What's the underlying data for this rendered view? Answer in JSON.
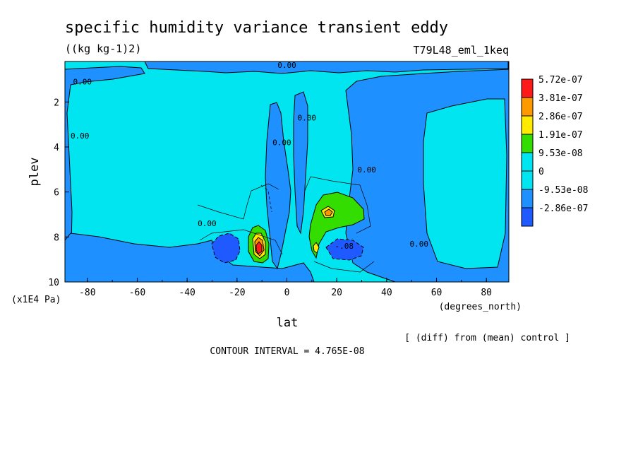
{
  "chart_data": {
    "type": "heatmap",
    "title": "specific humidity variance transient eddy",
    "units": "((kg kg-1)2)",
    "run_label": "T79L48_eml_1keq",
    "xlabel": "lat",
    "xunits": "(degrees_north)",
    "ylabel": "plev",
    "yunits": "(x1E4 Pa)",
    "x_ticks": [
      "-80",
      "-60",
      "-40",
      "-20",
      "0",
      "20",
      "40",
      "60",
      "80"
    ],
    "x_tick_values": [
      -80,
      -60,
      -40,
      -20,
      0,
      20,
      40,
      60,
      80
    ],
    "y_ticks": [
      "2",
      "4",
      "6",
      "8",
      "10"
    ],
    "y_tick_values": [
      2,
      4,
      6,
      8,
      10
    ],
    "xlim": [
      -89,
      89
    ],
    "ylim": [
      0.2,
      10
    ],
    "y_inverted": true,
    "grid": false,
    "legend_placement": "right",
    "colorbar": [
      {
        "label": "5.72e-07",
        "color": "#ff1a1a"
      },
      {
        "label": "3.81e-07",
        "color": "#ff9900"
      },
      {
        "label": "2.86e-07",
        "color": "#ffea00"
      },
      {
        "label": "1.91e-07",
        "color": "#33dd00"
      },
      {
        "label": "9.53e-08",
        "color": "#00e5f0"
      },
      {
        "label": "0",
        "color": "#00e5f0"
      },
      {
        "label": "-9.53e-08",
        "color": "#1e90ff"
      },
      {
        "label": "-2.86e-07",
        "color": "#1e5aff"
      }
    ],
    "contour_labels": [
      {
        "text": "0.00",
        "lat": -82,
        "plev": 1.1
      },
      {
        "text": "0.00",
        "lat": 0,
        "plev": 0.35
      },
      {
        "text": "0.00",
        "lat": -83,
        "plev": 3.5
      },
      {
        "text": "0.00",
        "lat": -2,
        "plev": 3.8
      },
      {
        "text": "0.00",
        "lat": 8,
        "plev": 2.7
      },
      {
        "text": "0.00",
        "lat": 32,
        "plev": 5.0
      },
      {
        "text": "0.00",
        "lat": -32,
        "plev": 7.4
      },
      {
        "text": "0.00",
        "lat": 53,
        "plev": 8.3
      },
      {
        "text": "-.08",
        "lat": 23,
        "plev": 8.4
      }
    ],
    "regions": [
      {
        "name": "negative-band-west",
        "lat_range": [
          -89,
          -62
        ],
        "plev_range": [
          0.4,
          10
        ],
        "level": "-9.53e-08"
      },
      {
        "name": "negative-column-equator",
        "lat_range": [
          -7,
          4
        ],
        "plev_range": [
          1.5,
          9.5
        ],
        "level": "-9.53e-08"
      },
      {
        "name": "negative-column-north",
        "lat_range": [
          27,
          89
        ],
        "plev_range": [
          0.4,
          10
        ],
        "level": "-9.53e-08"
      },
      {
        "name": "positive-max-south",
        "lat_range": [
          -17,
          -8
        ],
        "plev_range": [
          7.5,
          9.2
        ],
        "level": "5.72e-07"
      },
      {
        "name": "positive-max-north",
        "lat_range": [
          10,
          31
        ],
        "plev_range": [
          6.2,
          9.0
        ],
        "level": "2.86e-07"
      },
      {
        "name": "negative-min-south",
        "lat_range": [
          -30,
          -20
        ],
        "plev_range": [
          7.8,
          9.1
        ],
        "level": "-2.86e-07"
      },
      {
        "name": "negative-min-north",
        "lat_range": [
          17,
          31
        ],
        "plev_range": [
          8.0,
          9.0
        ],
        "level": "-2.86e-07"
      }
    ]
  },
  "footer": {
    "diff_note": "[ (diff) from (mean) control ]",
    "contour_interval": "CONTOUR INTERVAL = 4.765E-08"
  }
}
